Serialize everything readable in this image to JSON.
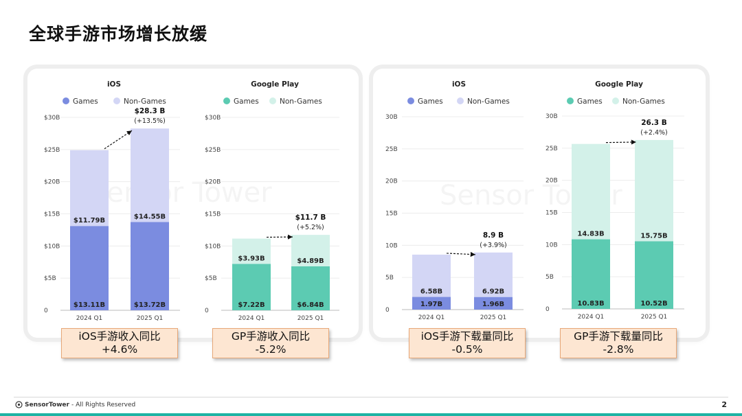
{
  "page": {
    "title": "全球手游市场增长放缓",
    "footer": {
      "brand": "SensorTower",
      "rights": "- All Rights Reserved"
    },
    "page_number": "2",
    "watermark": "Sensor Tower"
  },
  "summary_boxes": [
    {
      "line1": "iOS手游收入同比",
      "line2": "+4.6%"
    },
    {
      "line1": "GP手游收入同比",
      "line2": "-5.2%"
    },
    {
      "line1": "iOS手游下载量同比",
      "line2": "-0.5%"
    },
    {
      "line1": "GP手游下载量同比",
      "line2": "-2.8%"
    }
  ],
  "colors": {
    "ios_games": "#7b8ce0",
    "ios_nongames": "#d3d6f5",
    "gp_games": "#5ccbb2",
    "gp_nongames": "#d3f1e9"
  },
  "chart_data": [
    {
      "type": "bar",
      "stacked": true,
      "title": "iOS",
      "categories": [
        "2024 Q1",
        "2025 Q1"
      ],
      "series": [
        {
          "name": "Games",
          "values": [
            13.11,
            13.72
          ],
          "labels": [
            "$13.11B",
            "$13.72B"
          ]
        },
        {
          "name": "Non-Games",
          "values": [
            11.79,
            14.55
          ],
          "labels": [
            "$11.79B",
            "$14.55B"
          ]
        }
      ],
      "ylim": [
        0,
        30
      ],
      "yticks": [
        "0",
        "$5B",
        "$10B",
        "$15B",
        "$20B",
        "$25B",
        "$30B"
      ],
      "annotation": {
        "total": "$28.3 B",
        "change": "(+13.5%)"
      },
      "legend": "top"
    },
    {
      "type": "bar",
      "stacked": true,
      "title": "Google Play",
      "categories": [
        "2024 Q1",
        "2025 Q1"
      ],
      "series": [
        {
          "name": "Games",
          "values": [
            7.22,
            6.84
          ],
          "labels": [
            "$7.22B",
            "$6.84B"
          ]
        },
        {
          "name": "Non-Games",
          "values": [
            3.93,
            4.89
          ],
          "labels": [
            "$3.93B",
            "$4.89B"
          ]
        }
      ],
      "ylim": [
        0,
        30
      ],
      "yticks": [
        "0",
        "$5B",
        "$10B",
        "$15B",
        "$20B",
        "$25B",
        "$30B"
      ],
      "annotation": {
        "total": "$11.7 B",
        "change": "(+5.2%)"
      },
      "legend": "top"
    },
    {
      "type": "bar",
      "stacked": true,
      "title": "iOS",
      "categories": [
        "2024 Q1",
        "2025 Q1"
      ],
      "series": [
        {
          "name": "Games",
          "values": [
            1.97,
            1.96
          ],
          "labels": [
            "1.97B",
            "1.96B"
          ]
        },
        {
          "name": "Non-Games",
          "values": [
            6.58,
            6.92
          ],
          "labels": [
            "6.58B",
            "6.92B"
          ]
        }
      ],
      "ylim": [
        0,
        30
      ],
      "yticks": [
        "0",
        "5B",
        "10B",
        "15B",
        "20B",
        "25B",
        "30B"
      ],
      "annotation": {
        "total": "8.9 B",
        "change": "(+3.9%)"
      },
      "legend": "top"
    },
    {
      "type": "bar",
      "stacked": true,
      "title": "Google Play",
      "categories": [
        "2024 Q1",
        "2025 Q1"
      ],
      "series": [
        {
          "name": "Games",
          "values": [
            10.83,
            10.52
          ],
          "labels": [
            "10.83B",
            "10.52B"
          ]
        },
        {
          "name": "Non-Games",
          "values": [
            14.83,
            15.75
          ],
          "labels": [
            "14.83B",
            "15.75B"
          ]
        }
      ],
      "ylim": [
        0,
        30
      ],
      "yticks": [
        "0",
        "5B",
        "10B",
        "15B",
        "20B",
        "25B",
        "30B"
      ],
      "annotation": {
        "total": "26.3 B",
        "change": "(+2.4%)"
      },
      "legend": "top"
    }
  ]
}
